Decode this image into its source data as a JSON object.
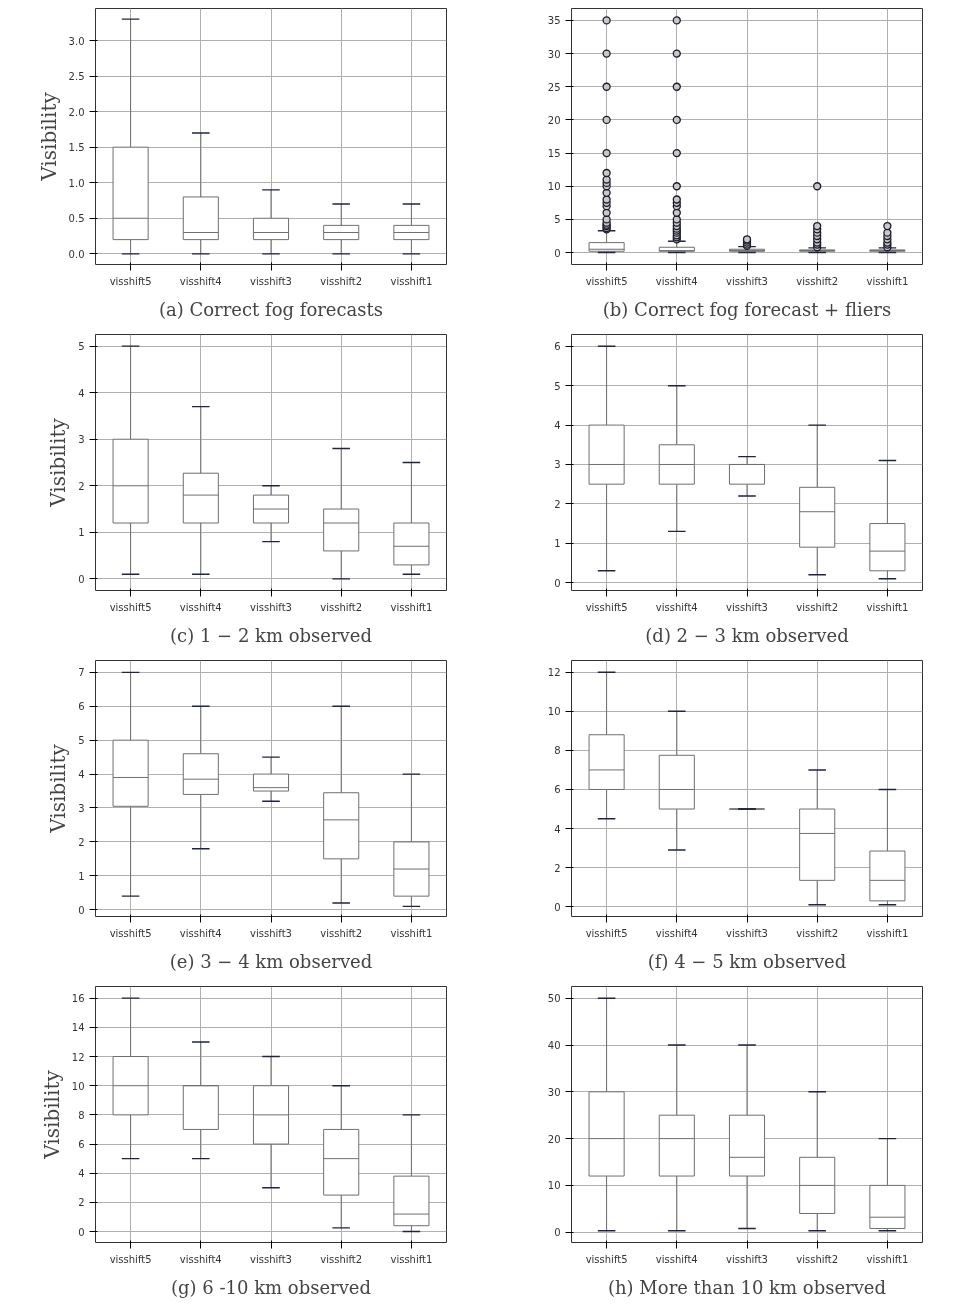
{
  "chart_data": [
    {
      "type": "box",
      "title": "(a) Correct fog forecasts",
      "ylabel": "Visibility",
      "grid": true,
      "categories": [
        "visshift5",
        "visshift4",
        "visshift3",
        "visshift2",
        "visshift1"
      ],
      "ylim": [
        -0.15,
        3.45
      ],
      "yticks": [
        {
          "value": 0,
          "label": "0.0"
        },
        0.5,
        {
          "value": 1,
          "label": "1.0"
        },
        1.5,
        {
          "value": 2,
          "label": "2.0"
        },
        2.5,
        {
          "value": 3,
          "label": "3.0"
        }
      ],
      "boxes": [
        {
          "low": 0,
          "q1": 0.2,
          "median": 0.5,
          "q3": 1.5,
          "high": 3.3
        },
        {
          "low": 0,
          "q1": 0.2,
          "median": 0.3,
          "q3": 0.8,
          "high": 1.7
        },
        {
          "low": 0,
          "q1": 0.2,
          "median": 0.3,
          "q3": 0.5,
          "high": 0.9
        },
        {
          "low": 0,
          "q1": 0.2,
          "median": 0.3,
          "q3": 0.4,
          "high": 0.7
        },
        {
          "low": 0,
          "q1": 0.2,
          "median": 0.3,
          "q3": 0.4,
          "high": 0.7
        }
      ]
    },
    {
      "type": "box",
      "title": "(b) Correct fog forecast + fliers",
      "grid": true,
      "marker": "circle",
      "categories": [
        "visshift5",
        "visshift4",
        "visshift3",
        "visshift2",
        "visshift1"
      ],
      "ylim": [
        -1.8,
        36.8
      ],
      "yticks": [
        0,
        5,
        10,
        15,
        20,
        25,
        30,
        35
      ],
      "boxes": [
        {
          "low": 0,
          "q1": 0.2,
          "median": 0.5,
          "q3": 1.5,
          "high": 3.3,
          "outliers": [
            3.5,
            3.7,
            4,
            4.2,
            4.5,
            5,
            6,
            7,
            7.5,
            8,
            9,
            10,
            10.5,
            11,
            12,
            15,
            20,
            25,
            30,
            35
          ]
        },
        {
          "low": 0,
          "q1": 0.2,
          "median": 0.3,
          "q3": 0.8,
          "high": 1.7,
          "outliers": [
            2,
            2.3,
            2.6,
            3,
            3.3,
            3.6,
            4,
            4.5,
            5,
            6,
            7,
            7.5,
            8,
            10,
            15,
            20,
            25,
            30,
            35
          ]
        },
        {
          "low": 0,
          "q1": 0.2,
          "median": 0.3,
          "q3": 0.5,
          "high": 0.9,
          "outliers": [
            1,
            1.2,
            1.5,
            1.8,
            2
          ]
        },
        {
          "low": 0,
          "q1": 0.2,
          "median": 0.3,
          "q3": 0.4,
          "high": 0.7,
          "outliers": [
            0.8,
            1.2,
            1.5,
            2,
            2.5,
            3,
            3.5,
            4,
            10
          ]
        },
        {
          "low": 0,
          "q1": 0.2,
          "median": 0.3,
          "q3": 0.4,
          "high": 0.7,
          "outliers": [
            0.8,
            1.2,
            1.5,
            2,
            2.5,
            3,
            4
          ]
        }
      ]
    },
    {
      "type": "box",
      "title": "(c) 1 − 2 km observed",
      "ylabel": "Visibility",
      "grid": true,
      "categories": [
        "visshift5",
        "visshift4",
        "visshift3",
        "visshift2",
        "visshift1"
      ],
      "ylim": [
        -0.25,
        5.25
      ],
      "yticks": [
        0,
        1,
        2,
        3,
        4,
        5
      ],
      "boxes": [
        {
          "low": 0.1,
          "q1": 1.2,
          "median": 2,
          "q3": 3,
          "high": 5
        },
        {
          "low": 0.1,
          "q1": 1.2,
          "median": 1.8,
          "q3": 2.27,
          "high": 3.7
        },
        {
          "low": 0.8,
          "q1": 1.2,
          "median": 1.5,
          "q3": 1.8,
          "high": 2
        },
        {
          "low": 0,
          "q1": 0.6,
          "median": 1.2,
          "q3": 1.5,
          "high": 2.8
        },
        {
          "low": 0.1,
          "q1": 0.3,
          "median": 0.7,
          "q3": 1.2,
          "high": 2.5
        }
      ]
    },
    {
      "type": "box",
      "title": "(d) 2 − 3 km observed",
      "grid": true,
      "categories": [
        "visshift5",
        "visshift4",
        "visshift3",
        "visshift2",
        "visshift1"
      ],
      "ylim": [
        -0.2,
        6.3
      ],
      "yticks": [
        0,
        1,
        2,
        3,
        4,
        5,
        6
      ],
      "boxes": [
        {
          "low": 0.3,
          "q1": 2.5,
          "median": 3,
          "q3": 4,
          "high": 6
        },
        {
          "low": 1.3,
          "q1": 2.5,
          "median": 3,
          "q3": 3.5,
          "high": 5
        },
        {
          "low": 2.2,
          "q1": 2.5,
          "median": 3,
          "q3": 3,
          "high": 3.2
        },
        {
          "low": 0.2,
          "q1": 0.9,
          "median": 1.8,
          "q3": 2.42,
          "high": 4
        },
        {
          "low": 0.1,
          "q1": 0.3,
          "median": 0.8,
          "q3": 1.5,
          "high": 3.1
        }
      ]
    },
    {
      "type": "box",
      "title": "(e) 3 − 4 km observed",
      "ylabel": "Visibility",
      "grid": true,
      "categories": [
        "visshift5",
        "visshift4",
        "visshift3",
        "visshift2",
        "visshift1"
      ],
      "ylim": [
        -0.2,
        7.35
      ],
      "yticks": [
        0,
        1,
        2,
        3,
        4,
        5,
        6,
        7
      ],
      "boxes": [
        {
          "low": 0.4,
          "q1": 3.05,
          "median": 3.9,
          "q3": 5,
          "high": 7
        },
        {
          "low": 1.8,
          "q1": 3.4,
          "median": 3.85,
          "q3": 4.6,
          "high": 6
        },
        {
          "low": 3.2,
          "q1": 3.5,
          "median": 3.6,
          "q3": 4,
          "high": 4.5
        },
        {
          "low": 0.2,
          "q1": 1.5,
          "median": 2.65,
          "q3": 3.45,
          "high": 6
        },
        {
          "low": 0.1,
          "q1": 0.4,
          "median": 1.2,
          "q3": 2,
          "high": 4
        }
      ]
    },
    {
      "type": "box",
      "title": "(f) 4 − 5 km observed",
      "grid": true,
      "categories": [
        "visshift5",
        "visshift4",
        "visshift3",
        "visshift2",
        "visshift1"
      ],
      "ylim": [
        -0.5,
        12.6
      ],
      "yticks": [
        0,
        2,
        4,
        6,
        8,
        10,
        12
      ],
      "boxes": [
        {
          "low": 4.5,
          "q1": 6,
          "median": 7,
          "q3": 8.8,
          "high": 12
        },
        {
          "low": 2.9,
          "q1": 5,
          "median": 6,
          "q3": 7.75,
          "high": 10
        },
        {
          "low": 5,
          "q1": 5,
          "median": 5,
          "q3": 5,
          "high": 5
        },
        {
          "low": 0.1,
          "q1": 1.35,
          "median": 3.75,
          "q3": 5,
          "high": 7
        },
        {
          "low": 0.1,
          "q1": 0.3,
          "median": 1.35,
          "q3": 2.85,
          "high": 6
        }
      ]
    },
    {
      "type": "box",
      "title": "(g) 6 -10 km observed",
      "ylabel": "Visibility",
      "grid": true,
      "categories": [
        "visshift5",
        "visshift4",
        "visshift3",
        "visshift2",
        "visshift1"
      ],
      "ylim": [
        -0.75,
        16.8
      ],
      "yticks": [
        0,
        2,
        4,
        6,
        8,
        10,
        12,
        14,
        16
      ],
      "boxes": [
        {
          "low": 5,
          "q1": 8,
          "median": 10,
          "q3": 12,
          "high": 16
        },
        {
          "low": 5,
          "q1": 7,
          "median": 10,
          "q3": 10,
          "high": 13
        },
        {
          "low": 3,
          "q1": 6,
          "median": 8,
          "q3": 10,
          "high": 12
        },
        {
          "low": 0.25,
          "q1": 2.5,
          "median": 5,
          "q3": 7,
          "high": 10
        },
        {
          "low": 0,
          "q1": 0.4,
          "median": 1.2,
          "q3": 3.8,
          "high": 8
        }
      ]
    },
    {
      "type": "box",
      "title": "(h) More than 10 km observed",
      "grid": true,
      "categories": [
        "visshift5",
        "visshift4",
        "visshift3",
        "visshift2",
        "visshift1"
      ],
      "ylim": [
        -2.2,
        52.5
      ],
      "yticks": [
        0,
        10,
        20,
        30,
        40,
        50
      ],
      "boxes": [
        {
          "low": 0.3,
          "q1": 12,
          "median": 20,
          "q3": 30,
          "high": 50
        },
        {
          "low": 0.3,
          "q1": 12,
          "median": 20,
          "q3": 25,
          "high": 40
        },
        {
          "low": 0.8,
          "q1": 12,
          "median": 16,
          "q3": 25,
          "high": 40
        },
        {
          "low": 0.3,
          "q1": 4,
          "median": 10,
          "q3": 16,
          "high": 30
        },
        {
          "low": 0.3,
          "q1": 0.8,
          "median": 3.2,
          "q3": 10,
          "high": 20
        }
      ]
    }
  ]
}
